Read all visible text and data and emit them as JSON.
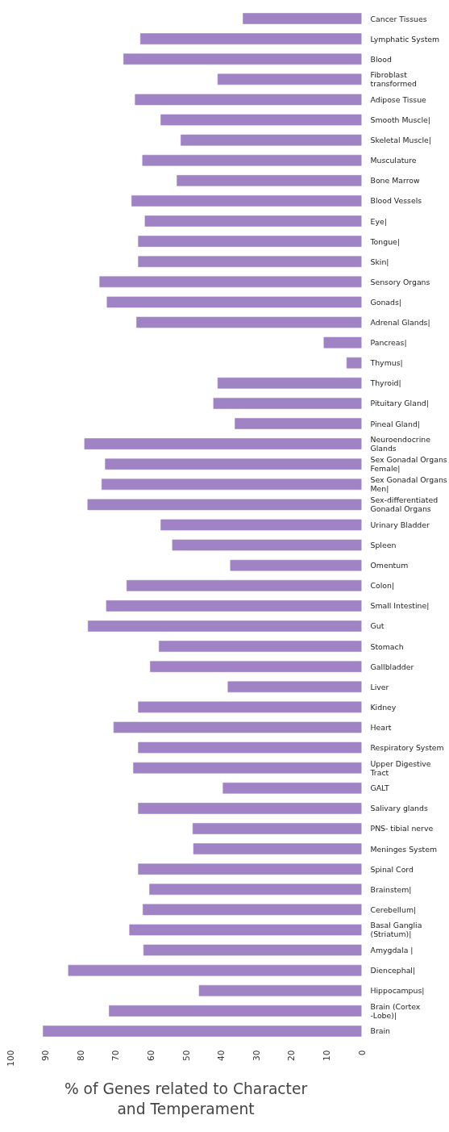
{
  "chart_data": {
    "type": "bar",
    "orientation": "horizontal",
    "xlabel": "% of Genes related to Character and Temperament",
    "categories": [
      "Cancer Tissues",
      "Lymphatic System",
      "Blood",
      "Fibroblast transformed",
      "Adipose Tissue",
      "Smooth Muscle|",
      "Skeletal Muscle|",
      "Musculature",
      "Bone Marrow",
      "Blood Vessels",
      "Eye|",
      "Tongue|",
      "Skin|",
      "Sensory Organs",
      "Gonads|",
      "Adrenal Glands|",
      "Pancreas|",
      "Thymus|",
      "Thyroid|",
      "Pituitary Gland|",
      "Pineal Gland|",
      "Neuroendocrine Glands",
      "Sex Gonadal Organs Female|",
      "Sex Gonadal Organs Men|",
      "Sex-differentiated Gonadal Organs",
      "Urinary Bladder",
      "Spleen",
      "Omentum",
      "Colon|",
      "Small Intestine|",
      "Gut",
      "Stomach",
      "Gallbladder",
      "Liver",
      "Kidney",
      "Heart",
      "Respiratory System",
      "Upper Digestive Tract",
      "GALT",
      "Salivary glands",
      "PNS- tibial nerve",
      "Meninges System",
      "Spinal Cord",
      "Brainstem|",
      "Cerebellum|",
      "Basal Ganglia (Striatum)|",
      "Amygdala |",
      "Diencephal|",
      "Hippocampus|",
      "Brain (Cortex -Lobe)|",
      "Brain"
    ],
    "values": [
      33.7,
      62.9,
      67.7,
      40.9,
      64.4,
      57.1,
      51.4,
      62.3,
      52.5,
      65.4,
      61.6,
      63.5,
      63.5,
      74.5,
      72.4,
      64.0,
      10.7,
      4.2,
      40.9,
      42.1,
      36.0,
      78.8,
      72.9,
      73.9,
      77.9,
      57.1,
      53.8,
      37.3,
      66.8,
      72.6,
      77.8,
      57.6,
      60.1,
      38.0,
      63.5,
      70.5,
      63.5,
      64.9,
      39.4,
      63.5,
      48.0,
      47.8,
      63.5,
      60.3,
      62.2,
      66.0,
      62.0,
      83.4,
      46.2,
      71.8,
      90.6
    ],
    "color": "#a083c4",
    "xlim": [
      100,
      0
    ],
    "xticks": [
      0,
      10,
      20,
      30,
      40,
      50,
      60,
      70,
      80,
      90,
      100
    ],
    "grid": false
  }
}
